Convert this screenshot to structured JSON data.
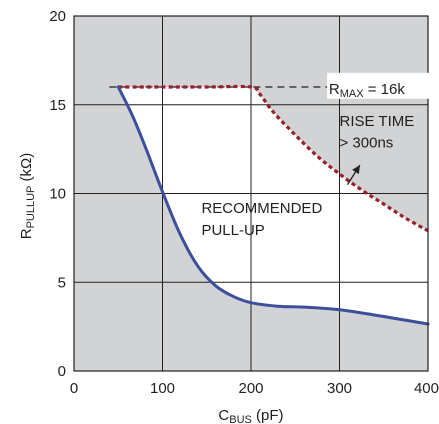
{
  "chart_data": {
    "type": "line",
    "title": "",
    "xlabel": {
      "main": "C",
      "sub": "BUS",
      "unit": " (pF)"
    },
    "ylabel": {
      "main": "R",
      "sub": "PULLUP",
      "unit": " (kΩ)"
    },
    "xlim": [
      0,
      400
    ],
    "ylim": [
      0,
      20
    ],
    "x_ticks": [
      0,
      100,
      200,
      300,
      400
    ],
    "y_ticks": [
      0,
      5,
      10,
      15,
      20
    ],
    "x_tick_labels": [
      "0",
      "100",
      "200",
      "300",
      "400"
    ],
    "y_tick_labels": [
      "0",
      "5",
      "10",
      "15",
      "20"
    ],
    "grid": true,
    "colors": {
      "shaded_region": "#d1d3d4",
      "recommended_region": "#ffffff",
      "pullup_curve": "#3c4f9c",
      "rise_time_curve": "#98202a",
      "rmax_line": "#231f20",
      "grid": "#231f20"
    },
    "series": [
      {
        "key": "pullup_curve",
        "values": [
          [
            50,
            16
          ],
          [
            65,
            14.5
          ],
          [
            80,
            12.7
          ],
          [
            100,
            10.1
          ],
          [
            120,
            7.7
          ],
          [
            140,
            5.9
          ],
          [
            160,
            4.8
          ],
          [
            180,
            4.2
          ],
          [
            200,
            3.85
          ],
          [
            230,
            3.65
          ],
          [
            260,
            3.6
          ],
          [
            300,
            3.45
          ],
          [
            340,
            3.15
          ],
          [
            370,
            2.9
          ],
          [
            400,
            2.65
          ]
        ]
      },
      {
        "key": "rise_time_curve",
        "values": [
          [
            50,
            16
          ],
          [
            100,
            16
          ],
          [
            150,
            16
          ],
          [
            200,
            16
          ],
          [
            210,
            15.6
          ],
          [
            225,
            14.6
          ],
          [
            250,
            13.3
          ],
          [
            275,
            12.1
          ],
          [
            300,
            11.1
          ],
          [
            325,
            10.2
          ],
          [
            350,
            9.4
          ],
          [
            375,
            8.6
          ],
          [
            400,
            7.9
          ]
        ]
      },
      {
        "key": "rmax_line",
        "values": [
          [
            40,
            16
          ],
          [
            400,
            16
          ]
        ]
      }
    ],
    "annotations": {
      "rmax": {
        "main": "R",
        "sub": "MAX",
        "rest": " = 16k"
      },
      "rise_time": [
        "RISE TIME",
        "> 300ns"
      ],
      "recommended": [
        "RECOMMENDED",
        "PULL-UP"
      ]
    }
  }
}
